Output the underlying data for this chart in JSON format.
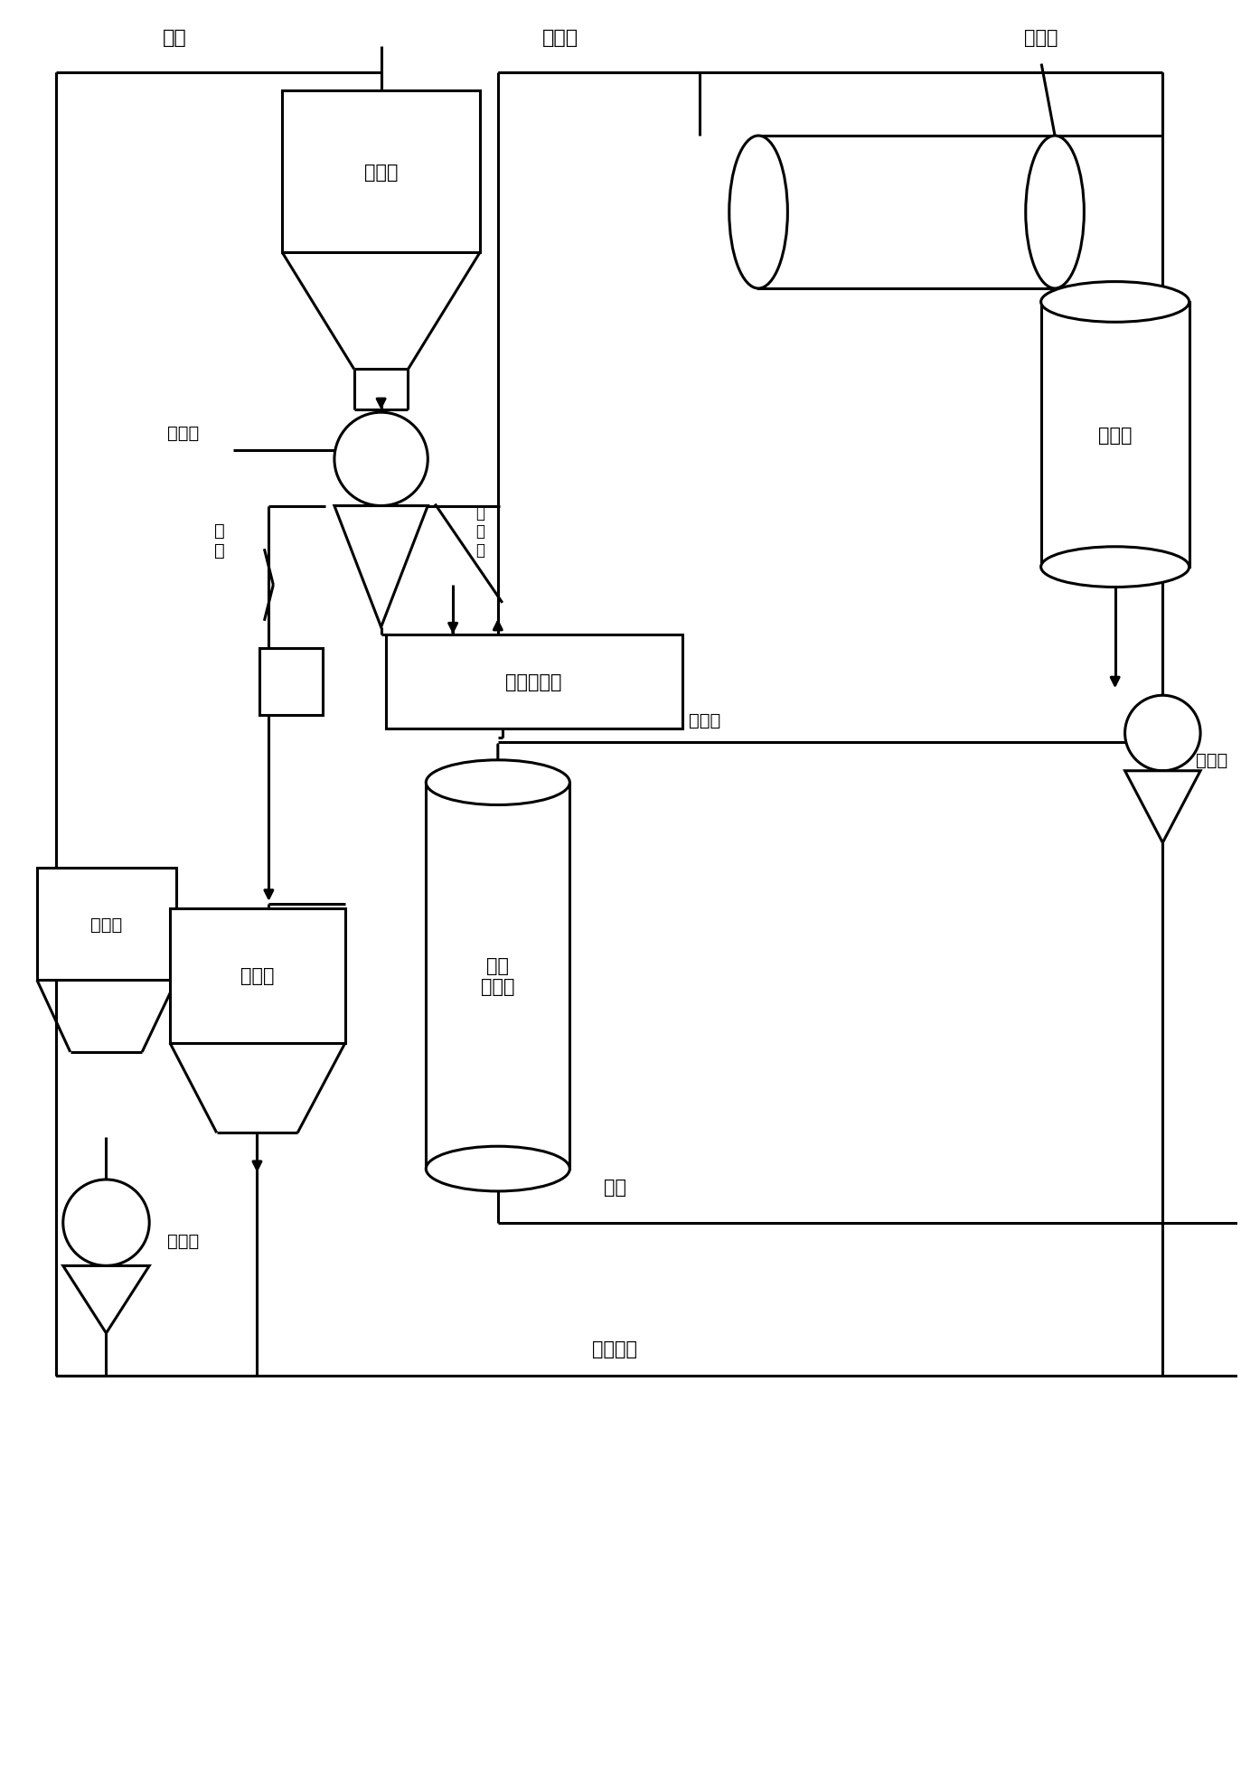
{
  "lw": 2.2,
  "fs": 14,
  "labels": {
    "feed": "浆料",
    "gaowei": "高位槽",
    "lixin": "离心机",
    "muye": "母\n液",
    "gesai": "隔塞框",
    "woshi": "卧式干燥器",
    "huifa": "挥发份",
    "lengjing": "冷凝器",
    "jiye": "集液器",
    "zhenkong": "真空泵",
    "lishi": "立式\n干燥器",
    "lengniye": "冷凝液",
    "xidi": "洗涤槽",
    "muyecao": "母液槽",
    "zhajiang": "渣浆泵",
    "chengpin": "成品",
    "quzhengliu": "去蒸馏釜"
  }
}
